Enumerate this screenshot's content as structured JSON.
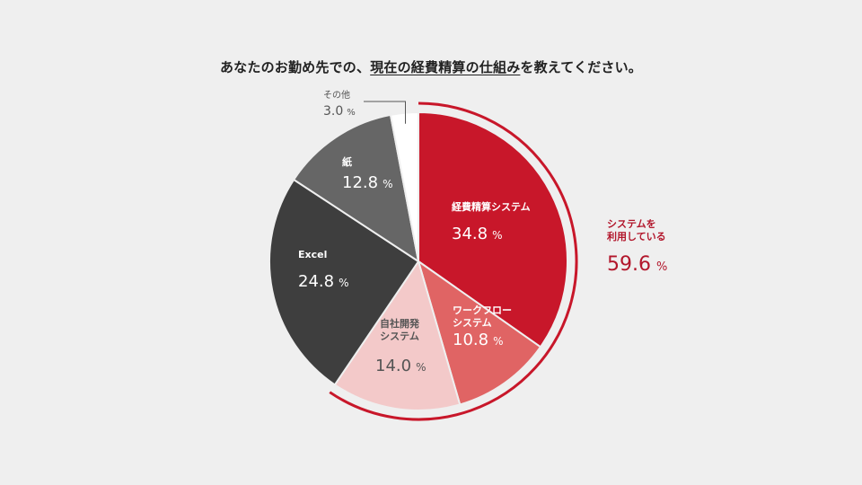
{
  "title": {
    "prefix": "あなたのお勤め先での、",
    "underlined": "現在の経費精算の仕組み",
    "suffix": "を教えてください。"
  },
  "colors": {
    "background": "#efefef",
    "accent": "#c8172a",
    "slice_colors": [
      "#c8172a",
      "#e06464",
      "#f3c9c9",
      "#3e3e3e",
      "#666666",
      "#ffffff"
    ]
  },
  "chart_data": {
    "type": "pie",
    "title": "あなたのお勤め先での、現在の経費精算の仕組みを教えてください。",
    "unit": "%",
    "slices": [
      {
        "label": "経費精算システム",
        "value": 34.8
      },
      {
        "label": "ワークフローシステム",
        "value": 10.8
      },
      {
        "label": "自社開発システム",
        "value": 14.0
      },
      {
        "label": "Excel",
        "value": 24.8
      },
      {
        "label": "紙",
        "value": 12.8
      },
      {
        "label": "その他",
        "value": 3.0
      }
    ],
    "group_annotation": {
      "label_line1": "システムを",
      "label_line2": "利用している",
      "value": 59.6,
      "members": [
        "経費精算システム",
        "ワークフローシステム",
        "自社開発システム"
      ]
    }
  },
  "labels": {
    "s0": {
      "name": "経費精算システム",
      "value": "34.8",
      "unit": "%"
    },
    "s1": {
      "name1": "ワークフロー",
      "name2": "システム",
      "value": "10.8",
      "unit": "%"
    },
    "s2": {
      "name1": "自社開発",
      "name2": "システム",
      "value": "14.0",
      "unit": "%"
    },
    "s3": {
      "name": "Excel",
      "value": "24.8",
      "unit": "%"
    },
    "s4": {
      "name": "紙",
      "value": "12.8",
      "unit": "%"
    },
    "s5": {
      "name": "その他",
      "value": "3.0",
      "unit": "%"
    },
    "group": {
      "line1": "システムを",
      "line2": "利用している",
      "value": "59.6",
      "unit": "%"
    }
  }
}
